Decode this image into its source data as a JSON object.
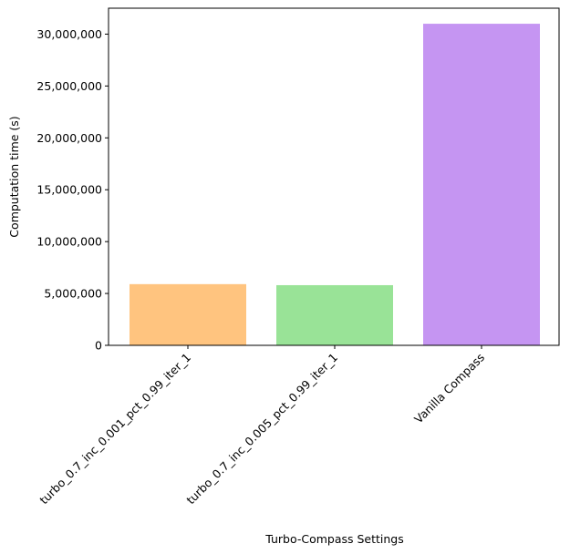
{
  "chart_data": {
    "type": "bar",
    "title": "",
    "xlabel": "Turbo-Compass Settings",
    "ylabel": "Computation time (s)",
    "categories": [
      "turbo_0.7_inc_0.001_pct_0.99_iter_1",
      "turbo_0.7_inc_0.005_pct_0.99_iter_1",
      "Vanilla Compass"
    ],
    "values": [
      5900000,
      5800000,
      31000000
    ],
    "colors": [
      "#ffc47f",
      "#99e397",
      "#c595f2"
    ],
    "ylim": [
      0,
      32500000
    ],
    "yticks": [
      0,
      5000000,
      10000000,
      15000000,
      20000000,
      25000000,
      30000000
    ],
    "ytick_labels": [
      "0",
      "5,000,000",
      "10,000,000",
      "15,000,000",
      "20,000,000",
      "25,000,000",
      "30,000,000"
    ],
    "grid": false,
    "legend": false
  }
}
